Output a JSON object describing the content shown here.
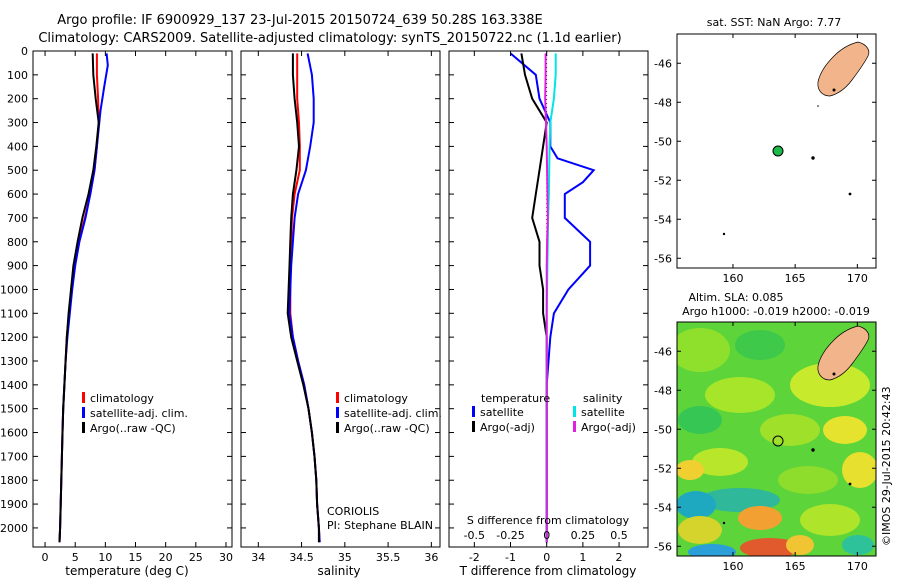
{
  "header": {
    "title_line1": "Argo profile: IF 6900929_137 23-Jul-2015 20150724_639 50.28S 163.338E",
    "title_line2": "Climatology: CARS2009. Satellite-adjusted climatology: synTS_20150722.nc (1.1d earlier)"
  },
  "colors": {
    "climatology": "#ff0000",
    "satellite": "#0000ff",
    "argo": "#000000",
    "salinity_sat": "#00e5e5",
    "salinity_argo": "#e020e0",
    "land": "#f2b48a",
    "ocean": "#ffffff",
    "float_marker": "#1fb84a"
  },
  "chart_data": [
    {
      "type": "line",
      "id": "temperature-profile",
      "xlabel": "temperature (deg C)",
      "xlim": [
        -2,
        31
      ],
      "ylim": [
        2080,
        0
      ],
      "xticks": [
        "0",
        "5",
        "10",
        "15",
        "20",
        "25",
        "30"
      ],
      "yticks": [
        "0",
        "100",
        "200",
        "300",
        "400",
        "500",
        "600",
        "700",
        "800",
        "900",
        "1000",
        "1100",
        "1200",
        "1300",
        "1400",
        "1500",
        "1600",
        "1700",
        "1800",
        "1900",
        "2000"
      ],
      "legend": [
        "climatology",
        "satellite-adj. clim.",
        "Argo(..raw -QC)"
      ],
      "series": [
        {
          "name": "climatology",
          "color": "#ff0000",
          "points": [
            [
              8.6,
              10
            ],
            [
              8.6,
              100
            ],
            [
              8.8,
              200
            ],
            [
              8.9,
              300
            ],
            [
              8.6,
              400
            ],
            [
              8.2,
              500
            ],
            [
              7.5,
              600
            ],
            [
              6.6,
              700
            ],
            [
              5.6,
              800
            ],
            [
              4.9,
              900
            ],
            [
              4.4,
              1000
            ],
            [
              4.0,
              1100
            ],
            [
              3.6,
              1200
            ],
            [
              3.4,
              1300
            ],
            [
              3.2,
              1400
            ],
            [
              3.0,
              1500
            ],
            [
              2.9,
              1600
            ],
            [
              2.8,
              1700
            ],
            [
              2.7,
              1800
            ],
            [
              2.6,
              1900
            ],
            [
              2.5,
              2000
            ],
            [
              2.4,
              2060
            ]
          ]
        },
        {
          "name": "satellite-adj. clim.",
          "color": "#0000ff",
          "points": [
            [
              10.2,
              10
            ],
            [
              10.4,
              60
            ],
            [
              9.8,
              150
            ],
            [
              9.2,
              250
            ],
            [
              9.0,
              300
            ],
            [
              8.6,
              400
            ],
            [
              8.2,
              500
            ],
            [
              7.5,
              600
            ],
            [
              6.7,
              700
            ],
            [
              5.7,
              800
            ],
            [
              5.0,
              900
            ],
            [
              4.5,
              1000
            ],
            [
              4.1,
              1100
            ],
            [
              3.7,
              1200
            ],
            [
              3.4,
              1300
            ],
            [
              3.2,
              1400
            ],
            [
              3.0,
              1500
            ],
            [
              2.9,
              1600
            ],
            [
              2.8,
              1700
            ],
            [
              2.7,
              1800
            ],
            [
              2.6,
              1900
            ],
            [
              2.5,
              2000
            ],
            [
              2.4,
              2060
            ]
          ]
        },
        {
          "name": "Argo(..raw -QC)",
          "color": "#000000",
          "points": [
            [
              7.9,
              10
            ],
            [
              8.0,
              100
            ],
            [
              8.4,
              200
            ],
            [
              8.9,
              300
            ],
            [
              8.5,
              400
            ],
            [
              8.0,
              500
            ],
            [
              7.2,
              600
            ],
            [
              6.2,
              700
            ],
            [
              5.4,
              800
            ],
            [
              4.7,
              900
            ],
            [
              4.3,
              1000
            ],
            [
              3.9,
              1100
            ],
            [
              3.6,
              1200
            ],
            [
              3.4,
              1300
            ],
            [
              3.2,
              1400
            ],
            [
              3.0,
              1500
            ],
            [
              2.9,
              1600
            ],
            [
              2.8,
              1700
            ],
            [
              2.7,
              1800
            ],
            [
              2.6,
              1900
            ],
            [
              2.5,
              2000
            ],
            [
              2.4,
              2060
            ]
          ]
        }
      ]
    },
    {
      "type": "line",
      "id": "salinity-profile",
      "xlabel": "salinity",
      "xlim": [
        33.8,
        36.1
      ],
      "ylim": [
        2080,
        0
      ],
      "xticks": [
        "34",
        "34.5",
        "35",
        "35.5",
        "36"
      ],
      "legend": [
        "climatology",
        "satellite-adj. clim.",
        "Argo(..raw -QC)"
      ],
      "annotation": [
        "CORIOLIS",
        "PI: Stephane BLAIN"
      ],
      "series": [
        {
          "name": "climatology",
          "color": "#ff0000",
          "points": [
            [
              34.45,
              10
            ],
            [
              34.45,
              100
            ],
            [
              34.45,
              200
            ],
            [
              34.47,
              300
            ],
            [
              34.48,
              400
            ],
            [
              34.48,
              500
            ],
            [
              34.42,
              600
            ],
            [
              34.39,
              700
            ],
            [
              34.38,
              800
            ],
            [
              34.37,
              900
            ],
            [
              34.37,
              1000
            ],
            [
              34.37,
              1100
            ],
            [
              34.4,
              1200
            ],
            [
              34.46,
              1300
            ],
            [
              34.53,
              1400
            ],
            [
              34.58,
              1500
            ],
            [
              34.62,
              1600
            ],
            [
              34.65,
              1700
            ],
            [
              34.67,
              1800
            ],
            [
              34.68,
              1900
            ],
            [
              34.7,
              2000
            ],
            [
              34.71,
              2060
            ]
          ]
        },
        {
          "name": "satellite-adj. clim.",
          "color": "#0000ff",
          "points": [
            [
              34.57,
              10
            ],
            [
              34.62,
              100
            ],
            [
              34.64,
              200
            ],
            [
              34.64,
              300
            ],
            [
              34.6,
              400
            ],
            [
              34.55,
              500
            ],
            [
              34.46,
              600
            ],
            [
              34.42,
              700
            ],
            [
              34.4,
              800
            ],
            [
              34.38,
              900
            ],
            [
              34.37,
              1000
            ],
            [
              34.36,
              1100
            ],
            [
              34.4,
              1200
            ],
            [
              34.46,
              1300
            ],
            [
              34.53,
              1400
            ],
            [
              34.58,
              1500
            ],
            [
              34.62,
              1600
            ],
            [
              34.65,
              1700
            ],
            [
              34.67,
              1800
            ],
            [
              34.68,
              1900
            ],
            [
              34.7,
              2000
            ],
            [
              34.71,
              2060
            ]
          ]
        },
        {
          "name": "Argo(..raw -QC)",
          "color": "#000000",
          "points": [
            [
              34.4,
              10
            ],
            [
              34.4,
              100
            ],
            [
              34.42,
              200
            ],
            [
              34.45,
              300
            ],
            [
              34.47,
              400
            ],
            [
              34.44,
              500
            ],
            [
              34.4,
              600
            ],
            [
              34.38,
              700
            ],
            [
              34.37,
              800
            ],
            [
              34.36,
              900
            ],
            [
              34.35,
              1000
            ],
            [
              34.34,
              1100
            ],
            [
              34.38,
              1200
            ],
            [
              34.45,
              1300
            ],
            [
              34.52,
              1400
            ],
            [
              34.58,
              1500
            ],
            [
              34.62,
              1600
            ],
            [
              34.65,
              1700
            ],
            [
              34.67,
              1800
            ],
            [
              34.68,
              1900
            ],
            [
              34.7,
              2000
            ],
            [
              34.7,
              2060
            ]
          ]
        }
      ]
    },
    {
      "type": "line",
      "id": "difference-profile",
      "xlabel": "T difference from climatology",
      "top_label": "S difference from climatology",
      "xlim": [
        -2.7,
        2.8
      ],
      "ylim": [
        2080,
        0
      ],
      "xticks": [
        "-2",
        "-1",
        "0",
        "1",
        "2"
      ],
      "top_ticks": [
        "-0.5",
        "-0.25",
        "0",
        "0.25",
        "0.5"
      ],
      "legend_temperature": [
        "temperature",
        "satellite",
        "Argo(-adj)"
      ],
      "legend_salinity": [
        "salinity",
        "satellite",
        "Argo(-adj)"
      ],
      "series": [
        {
          "name": "temperature satellite",
          "color": "#0000ff",
          "points": [
            [
              -1.0,
              10
            ],
            [
              -0.3,
              100
            ],
            [
              -0.2,
              200
            ],
            [
              0.1,
              300
            ],
            [
              0.1,
              400
            ],
            [
              0.3,
              450
            ],
            [
              1.3,
              500
            ],
            [
              1.0,
              550
            ],
            [
              0.5,
              600
            ],
            [
              0.5,
              700
            ],
            [
              1.2,
              800
            ],
            [
              1.2,
              900
            ],
            [
              0.6,
              1000
            ],
            [
              0.2,
              1100
            ],
            [
              0.1,
              1200
            ],
            [
              0.05,
              1300
            ],
            [
              0,
              1400
            ],
            [
              0,
              1600
            ],
            [
              0,
              1800
            ],
            [
              0,
              2060
            ]
          ]
        },
        {
          "name": "temperature Argo(-adj)",
          "color": "#000000",
          "points": [
            [
              -0.7,
              10
            ],
            [
              -0.6,
              100
            ],
            [
              -0.4,
              200
            ],
            [
              0.0,
              300
            ],
            [
              -0.1,
              400
            ],
            [
              -0.2,
              500
            ],
            [
              -0.3,
              600
            ],
            [
              -0.4,
              700
            ],
            [
              -0.2,
              800
            ],
            [
              -0.2,
              900
            ],
            [
              -0.1,
              1000
            ],
            [
              -0.1,
              1100
            ],
            [
              0,
              1200
            ],
            [
              0,
              1300
            ],
            [
              0,
              1400
            ],
            [
              0,
              2060
            ]
          ]
        },
        {
          "name": "salinity satellite",
          "color": "#00e5e5",
          "points": [
            [
              0.25,
              10
            ],
            [
              0.25,
              100
            ],
            [
              0.2,
              200
            ],
            [
              0.1,
              300
            ],
            [
              0.08,
              400
            ],
            [
              0.07,
              500
            ],
            [
              0.06,
              600
            ],
            [
              0.04,
              700
            ],
            [
              0.03,
              800
            ],
            [
              0.02,
              900
            ],
            [
              0.01,
              1000
            ],
            [
              0,
              1100
            ],
            [
              0,
              1400
            ],
            [
              0,
              2060
            ]
          ]
        },
        {
          "name": "salinity Argo(-adj)",
          "color": "#e020e0",
          "points": [
            [
              -0.03,
              10
            ],
            [
              -0.03,
              100
            ],
            [
              -0.04,
              200
            ],
            [
              -0.02,
              300
            ],
            [
              0,
              400
            ],
            [
              0.01,
              500
            ],
            [
              0.02,
              600
            ],
            [
              0.03,
              700
            ],
            [
              0.01,
              800
            ],
            [
              0,
              900
            ],
            [
              0,
              1000
            ],
            [
              0,
              2060
            ]
          ]
        }
      ]
    }
  ],
  "map_sst": {
    "title": "sat. SST: NaN Argo: 7.77",
    "yticks": [
      "-46",
      "-48",
      "-50",
      "-52",
      "-54",
      "-56"
    ],
    "xticks": [
      "160",
      "165",
      "170"
    ],
    "float_lon": 163.338,
    "float_lat": -50.28
  },
  "map_sla": {
    "title_line1": "Altim. SLA: 0.085",
    "title_line2": "Argo h1000: -0.019 h2000: -0.019",
    "yticks": [
      "-46",
      "-48",
      "-50",
      "-52",
      "-54",
      "-56"
    ],
    "xticks": [
      "160",
      "165",
      "170"
    ]
  },
  "footer": {
    "credit": "©IMOS 29-Jul-2015 20:42:43"
  }
}
